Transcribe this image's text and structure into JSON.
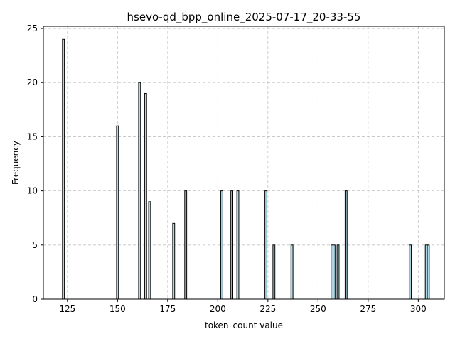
{
  "chart_data": {
    "type": "bar",
    "title": "hsevo-qd_bpp_online_2025-07-17_20-33-55",
    "xlabel": "token_count value",
    "ylabel": "Frequency",
    "xlim": [
      113,
      313
    ],
    "ylim": [
      0,
      25.2
    ],
    "xticks": [
      125,
      150,
      175,
      200,
      225,
      250,
      275,
      300
    ],
    "yticks": [
      0,
      5,
      10,
      15,
      20,
      25
    ],
    "grid": true,
    "bar_color": "#add8e6",
    "edge_color": "#000000",
    "bin_width": 1,
    "bars": [
      {
        "x": 123,
        "value": 24
      },
      {
        "x": 150,
        "value": 16
      },
      {
        "x": 161,
        "value": 20
      },
      {
        "x": 164,
        "value": 19
      },
      {
        "x": 166,
        "value": 9
      },
      {
        "x": 178,
        "value": 7
      },
      {
        "x": 184,
        "value": 10
      },
      {
        "x": 202,
        "value": 10
      },
      {
        "x": 207,
        "value": 10
      },
      {
        "x": 210,
        "value": 10
      },
      {
        "x": 224,
        "value": 10
      },
      {
        "x": 228,
        "value": 5
      },
      {
        "x": 237,
        "value": 5
      },
      {
        "x": 257,
        "value": 5
      },
      {
        "x": 258,
        "value": 5
      },
      {
        "x": 260,
        "value": 5
      },
      {
        "x": 264,
        "value": 10
      },
      {
        "x": 296,
        "value": 5
      },
      {
        "x": 304,
        "value": 5
      },
      {
        "x": 305,
        "value": 5
      }
    ]
  }
}
